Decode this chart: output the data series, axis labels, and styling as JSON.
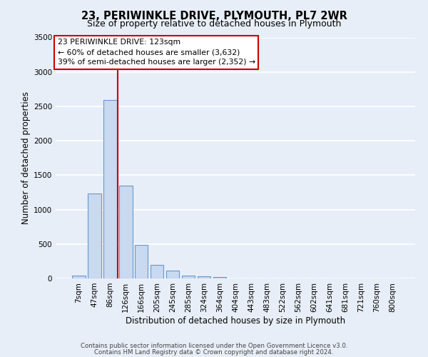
{
  "title": "23, PERIWINKLE DRIVE, PLYMOUTH, PL7 2WR",
  "subtitle": "Size of property relative to detached houses in Plymouth",
  "xlabel": "Distribution of detached houses by size in Plymouth",
  "ylabel": "Number of detached properties",
  "bar_labels": [
    "7sqm",
    "47sqm",
    "86sqm",
    "126sqm",
    "166sqm",
    "205sqm",
    "245sqm",
    "285sqm",
    "324sqm",
    "364sqm",
    "404sqm",
    "443sqm",
    "483sqm",
    "522sqm",
    "562sqm",
    "602sqm",
    "641sqm",
    "681sqm",
    "721sqm",
    "760sqm",
    "800sqm"
  ],
  "bar_values": [
    45,
    1230,
    2590,
    1345,
    490,
    200,
    110,
    45,
    35,
    20,
    0,
    0,
    0,
    0,
    0,
    0,
    0,
    0,
    0,
    0,
    0
  ],
  "bar_color": "#c9d9ef",
  "bar_edge_color": "#6699cc",
  "vline_color": "#cc0000",
  "vline_x": 2.5,
  "ylim": [
    0,
    3500
  ],
  "yticks": [
    0,
    500,
    1000,
    1500,
    2000,
    2500,
    3000,
    3500
  ],
  "annotation_title": "23 PERIWINKLE DRIVE: 123sqm",
  "annotation_line1": "← 60% of detached houses are smaller (3,632)",
  "annotation_line2": "39% of semi-detached houses are larger (2,352) →",
  "annotation_box_facecolor": "#ffffff",
  "annotation_box_edgecolor": "#cc0000",
  "background_color": "#e8eef8",
  "grid_color": "#ffffff",
  "title_fontsize": 10.5,
  "subtitle_fontsize": 9,
  "axis_label_fontsize": 8.5,
  "tick_fontsize": 7.5,
  "annotation_fontsize": 7.8,
  "footer1": "Contains HM Land Registry data © Crown copyright and database right 2024.",
  "footer2": "Contains public sector information licensed under the Open Government Licence v3.0."
}
